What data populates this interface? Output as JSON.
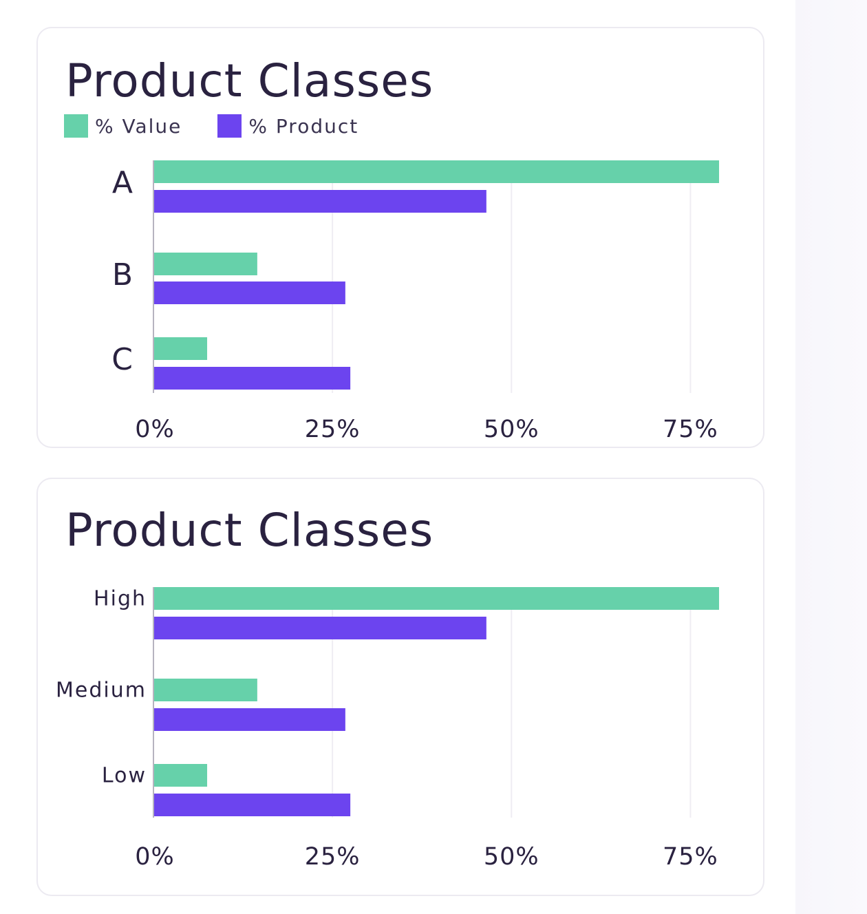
{
  "colors": {
    "value": "#66d1aa",
    "product": "#6c44ef",
    "axis": "#b6b3c0",
    "grid": "#efedf3",
    "text": "#2a2240"
  },
  "cards": [
    {
      "title": "Product Classes",
      "legend": [
        {
          "label": "% Value",
          "color": "#66d1aa"
        },
        {
          "label": "% Product",
          "color": "#6c44ef"
        }
      ]
    },
    {
      "title": "Product Classes"
    }
  ],
  "chart_data": [
    {
      "type": "bar",
      "orientation": "horizontal",
      "title": "Product Classes",
      "categories": [
        "A",
        "B",
        "C"
      ],
      "series": [
        {
          "name": "% Value",
          "values": [
            79,
            14.5,
            7.5
          ]
        },
        {
          "name": "% Product",
          "values": [
            46.5,
            26.8,
            27.5
          ]
        }
      ],
      "xlim": [
        0,
        79
      ],
      "xticks": [
        0,
        25,
        50,
        75
      ],
      "xtick_labels": [
        "0%",
        "25%",
        "50%",
        "75%"
      ],
      "grid": "vertical",
      "legend": "top-left"
    },
    {
      "type": "bar",
      "orientation": "horizontal",
      "title": "Product Classes",
      "categories": [
        "High",
        "Medium",
        "Low"
      ],
      "series": [
        {
          "name": "% Value",
          "values": [
            79,
            14.5,
            7.5
          ]
        },
        {
          "name": "% Product",
          "values": [
            46.5,
            26.8,
            27.5
          ]
        }
      ],
      "xlim": [
        0,
        79
      ],
      "xticks": [
        0,
        25,
        50,
        75
      ],
      "xtick_labels": [
        "0%",
        "25%",
        "50%",
        "75%"
      ],
      "grid": "vertical",
      "legend": "none"
    }
  ]
}
